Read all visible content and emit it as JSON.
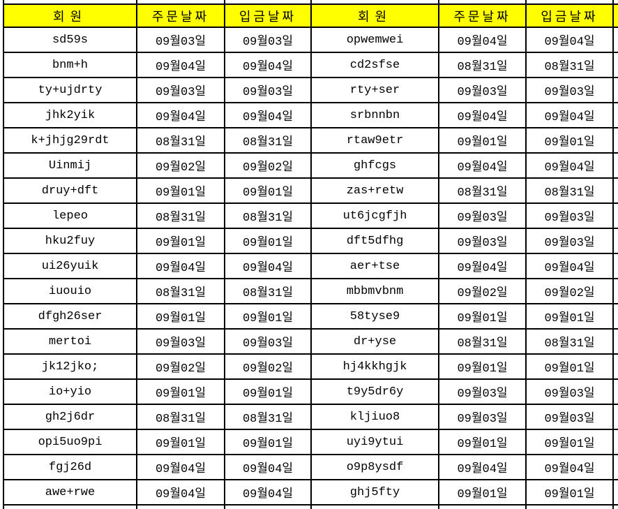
{
  "colors": {
    "header_bg": "#ffff00",
    "border": "#000000",
    "text": "#000000",
    "row_bg": "#ffffff"
  },
  "table": {
    "headers": [
      "회원",
      "주문날짜",
      "입금날짜",
      "회원",
      "주문날짜",
      "입금날짜"
    ],
    "rows": [
      [
        "sd59s",
        "09월03일",
        "09월03일",
        "opwemwei",
        "09월04일",
        "09월04일"
      ],
      [
        "bnm+h",
        "09월04일",
        "09월04일",
        "cd2sfse",
        "08월31일",
        "08월31일"
      ],
      [
        "ty+ujdrty",
        "09월03일",
        "09월03일",
        "rty+ser",
        "09월03일",
        "09월03일"
      ],
      [
        "jhk2yik",
        "09월04일",
        "09월04일",
        "srbnnbn",
        "09월04일",
        "09월04일"
      ],
      [
        "k+jhjg29rdt",
        "08월31일",
        "08월31일",
        "rtaw9etr",
        "09월01일",
        "09월01일"
      ],
      [
        "Uinmij",
        "09월02일",
        "09월02일",
        "ghfcgs",
        "09월04일",
        "09월04일"
      ],
      [
        "druy+dft",
        "09월01일",
        "09월01일",
        "zas+retw",
        "08월31일",
        "08월31일"
      ],
      [
        "lepeo",
        "08월31일",
        "08월31일",
        "ut6jcgfjh",
        "09월03일",
        "09월03일"
      ],
      [
        "hku2fuy",
        "09월01일",
        "09월01일",
        "dft5dfhg",
        "09월03일",
        "09월03일"
      ],
      [
        "ui26yuik",
        "09월04일",
        "09월04일",
        "aer+tse",
        "09월04일",
        "09월04일"
      ],
      [
        "iuouio",
        "08월31일",
        "08월31일",
        "mbbmvbnm",
        "09월02일",
        "09월02일"
      ],
      [
        "dfgh26ser",
        "09월01일",
        "09월01일",
        "58tyse9",
        "09월01일",
        "09월01일"
      ],
      [
        "mertoi",
        "09월03일",
        "09월03일",
        "dr+yse",
        "08월31일",
        "08월31일"
      ],
      [
        "jk12jko;",
        "09월02일",
        "09월02일",
        "hj4kkhgjk",
        "09월01일",
        "09월01일"
      ],
      [
        "io+yio",
        "09월01일",
        "09월01일",
        "t9y5dr6y",
        "09월03일",
        "09월03일"
      ],
      [
        "gh2j6dr",
        "08월31일",
        "08월31일",
        "kljiuo8",
        "09월03일",
        "09월03일"
      ],
      [
        "opi5uo9pi",
        "09월01일",
        "09월01일",
        "uyi9ytui",
        "09월01일",
        "09월01일"
      ],
      [
        "fgj26d",
        "09월04일",
        "09월04일",
        "o9p8ysdf",
        "09월04일",
        "09월04일"
      ],
      [
        "awe+rwe",
        "09월04일",
        "09월04일",
        "ghj5fty",
        "09월01일",
        "09월01일"
      ]
    ]
  }
}
